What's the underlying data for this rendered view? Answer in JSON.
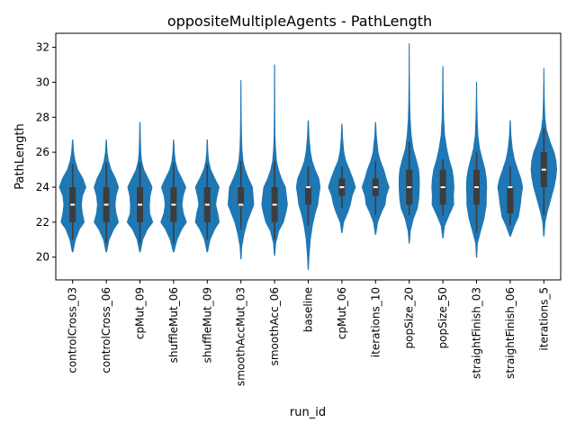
{
  "chart_data": {
    "type": "violin",
    "title": "oppositeMultipleAgents - PathLength",
    "xlabel": "run_id",
    "ylabel": "PathLength",
    "ylim": [
      18.7,
      32.8
    ],
    "yticks": [
      20,
      22,
      24,
      26,
      28,
      30,
      32
    ],
    "grid": false,
    "color": "#1f77b4",
    "box_color": "#3d3d3d",
    "median_color": "#ffffff",
    "categories": [
      "controlCross_03",
      "controlCross_06",
      "cpMut_09",
      "shuffleMut_06",
      "shuffleMut_09",
      "smoothAccMut_03",
      "smoothAcc_06",
      "baseline",
      "cpMut_06",
      "iterations_10",
      "popSize_20",
      "popSize_50",
      "straightFinish_03",
      "straightFinish_06",
      "iterations_5"
    ],
    "violins": [
      {
        "min": 20.3,
        "max": 26.7,
        "q1": 22,
        "median": 23,
        "q3": 24,
        "whisker_low": 21,
        "whisker_high": 25.3,
        "density": [
          [
            20.3,
            0.02
          ],
          [
            21,
            0.2
          ],
          [
            21.6,
            0.5
          ],
          [
            22,
            0.86
          ],
          [
            22.5,
            0.72
          ],
          [
            23,
            0.65
          ],
          [
            23.5,
            0.72
          ],
          [
            24,
            0.98
          ],
          [
            24.5,
            0.75
          ],
          [
            25,
            0.38
          ],
          [
            25.5,
            0.18
          ],
          [
            26,
            0.07
          ],
          [
            26.7,
            0.01
          ]
        ]
      },
      {
        "min": 20.3,
        "max": 26.7,
        "q1": 22,
        "median": 23,
        "q3": 24,
        "whisker_low": 20.8,
        "whisker_high": 25.4,
        "density": [
          [
            20.3,
            0.02
          ],
          [
            21,
            0.2
          ],
          [
            21.6,
            0.55
          ],
          [
            22,
            0.9
          ],
          [
            22.5,
            0.72
          ],
          [
            23,
            0.65
          ],
          [
            23.5,
            0.72
          ],
          [
            24,
            0.9
          ],
          [
            24.5,
            0.68
          ],
          [
            25,
            0.35
          ],
          [
            25.5,
            0.16
          ],
          [
            26,
            0.06
          ],
          [
            26.7,
            0.01
          ]
        ]
      },
      {
        "min": 20.3,
        "max": 27.7,
        "q1": 22,
        "median": 23,
        "q3": 24,
        "whisker_low": 20.8,
        "whisker_high": 25.4,
        "density": [
          [
            20.3,
            0.02
          ],
          [
            21,
            0.2
          ],
          [
            21.6,
            0.55
          ],
          [
            22,
            0.95
          ],
          [
            22.5,
            0.72
          ],
          [
            23,
            0.7
          ],
          [
            23.5,
            0.75
          ],
          [
            24,
            0.9
          ],
          [
            24.5,
            0.6
          ],
          [
            25,
            0.28
          ],
          [
            25.5,
            0.12
          ],
          [
            26,
            0.06
          ],
          [
            26.8,
            0.03
          ],
          [
            27.7,
            0.01
          ]
        ]
      },
      {
        "min": 20.3,
        "max": 26.7,
        "q1": 22,
        "median": 23,
        "q3": 24,
        "whisker_low": 20.8,
        "whisker_high": 25.4,
        "density": [
          [
            20.3,
            0.02
          ],
          [
            21,
            0.25
          ],
          [
            21.6,
            0.6
          ],
          [
            22,
            0.95
          ],
          [
            22.5,
            0.72
          ],
          [
            23,
            0.62
          ],
          [
            23.5,
            0.7
          ],
          [
            24,
            0.9
          ],
          [
            24.5,
            0.6
          ],
          [
            25,
            0.28
          ],
          [
            25.5,
            0.12
          ],
          [
            26,
            0.05
          ],
          [
            26.7,
            0.01
          ]
        ]
      },
      {
        "min": 20.3,
        "max": 26.7,
        "q1": 22,
        "median": 23,
        "q3": 24,
        "whisker_low": 21,
        "whisker_high": 25.3,
        "density": [
          [
            20.3,
            0.02
          ],
          [
            21,
            0.2
          ],
          [
            21.6,
            0.55
          ],
          [
            22,
            0.88
          ],
          [
            22.5,
            0.78
          ],
          [
            23,
            0.62
          ],
          [
            23.5,
            0.72
          ],
          [
            24,
            0.88
          ],
          [
            24.5,
            0.55
          ],
          [
            25,
            0.25
          ],
          [
            25.5,
            0.1
          ],
          [
            26,
            0.04
          ],
          [
            26.7,
            0.01
          ]
        ]
      },
      {
        "min": 19.9,
        "max": 30.1,
        "q1": 23,
        "median": 23,
        "q3": 24,
        "whisker_low": 21.6,
        "whisker_high": 25.5,
        "density": [
          [
            19.9,
            0.01
          ],
          [
            20.6,
            0.06
          ],
          [
            21.3,
            0.22
          ],
          [
            22,
            0.45
          ],
          [
            22.6,
            0.75
          ],
          [
            23,
            0.95
          ],
          [
            23.5,
            0.9
          ],
          [
            24,
            0.85
          ],
          [
            24.5,
            0.55
          ],
          [
            25,
            0.3
          ],
          [
            25.5,
            0.15
          ],
          [
            26.2,
            0.07
          ],
          [
            27,
            0.04
          ],
          [
            28,
            0.02
          ],
          [
            29,
            0.01
          ],
          [
            30.1,
            0.005
          ]
        ]
      },
      {
        "min": 20.1,
        "max": 31.0,
        "q1": 22,
        "median": 23,
        "q3": 24,
        "whisker_low": 21,
        "whisker_high": 25.5,
        "density": [
          [
            20.1,
            0.01
          ],
          [
            20.8,
            0.08
          ],
          [
            21.5,
            0.3
          ],
          [
            22,
            0.65
          ],
          [
            22.6,
            0.85
          ],
          [
            23,
            0.95
          ],
          [
            23.5,
            0.88
          ],
          [
            24,
            0.8
          ],
          [
            24.5,
            0.5
          ],
          [
            25,
            0.28
          ],
          [
            25.5,
            0.14
          ],
          [
            26.2,
            0.07
          ],
          [
            27,
            0.03
          ],
          [
            28.5,
            0.015
          ],
          [
            31,
            0.005
          ]
        ]
      },
      {
        "min": 19.3,
        "max": 27.8,
        "q1": 23,
        "median": 24,
        "q3": 24,
        "whisker_low": 21.8,
        "whisker_high": 25.2,
        "density": [
          [
            19.3,
            0.01
          ],
          [
            20,
            0.05
          ],
          [
            21,
            0.15
          ],
          [
            21.8,
            0.3
          ],
          [
            22.5,
            0.5
          ],
          [
            23,
            0.7
          ],
          [
            23.5,
            0.78
          ],
          [
            24,
            0.88
          ],
          [
            24.5,
            0.78
          ],
          [
            25,
            0.5
          ],
          [
            25.5,
            0.28
          ],
          [
            26,
            0.16
          ],
          [
            26.8,
            0.06
          ],
          [
            27.8,
            0.01
          ]
        ]
      },
      {
        "min": 21.4,
        "max": 27.6,
        "q1": 23.5,
        "median": 24,
        "q3": 24.5,
        "whisker_low": 22.8,
        "whisker_high": 25.2,
        "density": [
          [
            21.4,
            0.01
          ],
          [
            22,
            0.12
          ],
          [
            22.6,
            0.45
          ],
          [
            23,
            0.62
          ],
          [
            23.5,
            0.75
          ],
          [
            24,
            1.0
          ],
          [
            24.5,
            0.8
          ],
          [
            25,
            0.55
          ],
          [
            25.5,
            0.28
          ],
          [
            26,
            0.14
          ],
          [
            26.8,
            0.05
          ],
          [
            27.6,
            0.01
          ]
        ]
      },
      {
        "min": 21.3,
        "max": 27.7,
        "q1": 23.5,
        "median": 24,
        "q3": 24.5,
        "whisker_low": 22.4,
        "whisker_high": 25.5,
        "density": [
          [
            21.3,
            0.01
          ],
          [
            22,
            0.15
          ],
          [
            22.6,
            0.45
          ],
          [
            23,
            0.7
          ],
          [
            23.5,
            0.78
          ],
          [
            24,
            1.0
          ],
          [
            24.5,
            0.78
          ],
          [
            25,
            0.6
          ],
          [
            25.5,
            0.35
          ],
          [
            26,
            0.18
          ],
          [
            27,
            0.05
          ],
          [
            27.7,
            0.01
          ]
        ]
      },
      {
        "min": 20.8,
        "max": 32.2,
        "q1": 23,
        "median": 24,
        "q3": 25,
        "whisker_low": 22.4,
        "whisker_high": 26.6,
        "density": [
          [
            20.8,
            0.01
          ],
          [
            21.5,
            0.08
          ],
          [
            22.2,
            0.3
          ],
          [
            22.8,
            0.6
          ],
          [
            23.3,
            0.7
          ],
          [
            24,
            0.75
          ],
          [
            24.5,
            0.75
          ],
          [
            25,
            0.7
          ],
          [
            25.6,
            0.5
          ],
          [
            26.2,
            0.28
          ],
          [
            27,
            0.14
          ],
          [
            28,
            0.06
          ],
          [
            29,
            0.03
          ],
          [
            30.5,
            0.01
          ],
          [
            32.2,
            0.003
          ]
        ]
      },
      {
        "min": 21.1,
        "max": 30.9,
        "q1": 23,
        "median": 24,
        "q3": 25,
        "whisker_low": 22.4,
        "whisker_high": 25.6,
        "density": [
          [
            21.1,
            0.01
          ],
          [
            21.8,
            0.12
          ],
          [
            22.4,
            0.45
          ],
          [
            23,
            0.8
          ],
          [
            23.5,
            0.78
          ],
          [
            24,
            0.82
          ],
          [
            24.5,
            0.78
          ],
          [
            25,
            0.68
          ],
          [
            25.6,
            0.45
          ],
          [
            26.2,
            0.28
          ],
          [
            27,
            0.12
          ],
          [
            28,
            0.05
          ],
          [
            29.5,
            0.02
          ],
          [
            30.9,
            0.005
          ]
        ]
      },
      {
        "min": 20.0,
        "max": 30.0,
        "q1": 23,
        "median": 24,
        "q3": 25,
        "whisker_low": 21.4,
        "whisker_high": 26,
        "density": [
          [
            20,
            0.01
          ],
          [
            20.8,
            0.06
          ],
          [
            21.5,
            0.3
          ],
          [
            22.2,
            0.55
          ],
          [
            23,
            0.72
          ],
          [
            23.5,
            0.72
          ],
          [
            24,
            0.75
          ],
          [
            24.5,
            0.72
          ],
          [
            25,
            0.62
          ],
          [
            25.6,
            0.42
          ],
          [
            26.2,
            0.22
          ],
          [
            27,
            0.09
          ],
          [
            28,
            0.04
          ],
          [
            29,
            0.015
          ],
          [
            30,
            0.005
          ]
        ]
      },
      {
        "min": 21.2,
        "max": 27.8,
        "q1": 22.5,
        "median": 24,
        "q3": 24,
        "whisker_low": 21.8,
        "whisker_high": 25.2,
        "density": [
          [
            21.2,
            0.02
          ],
          [
            21.8,
            0.3
          ],
          [
            22.3,
            0.6
          ],
          [
            23,
            0.75
          ],
          [
            23.5,
            0.82
          ],
          [
            24,
            0.92
          ],
          [
            24.5,
            0.78
          ],
          [
            25,
            0.55
          ],
          [
            25.6,
            0.3
          ],
          [
            26.2,
            0.15
          ],
          [
            27,
            0.05
          ],
          [
            27.8,
            0.01
          ]
        ]
      },
      {
        "min": 21.2,
        "max": 30.8,
        "q1": 24,
        "median": 25,
        "q3": 26,
        "whisker_low": 22.4,
        "whisker_high": 27.4,
        "density": [
          [
            21.2,
            0.01
          ],
          [
            22,
            0.08
          ],
          [
            22.6,
            0.25
          ],
          [
            23.3,
            0.5
          ],
          [
            24,
            0.75
          ],
          [
            24.5,
            0.88
          ],
          [
            25,
            0.95
          ],
          [
            25.5,
            0.9
          ],
          [
            26,
            0.75
          ],
          [
            26.6,
            0.45
          ],
          [
            27.3,
            0.18
          ],
          [
            28,
            0.07
          ],
          [
            29,
            0.03
          ],
          [
            30,
            0.01
          ],
          [
            30.8,
            0.003
          ]
        ]
      }
    ]
  }
}
